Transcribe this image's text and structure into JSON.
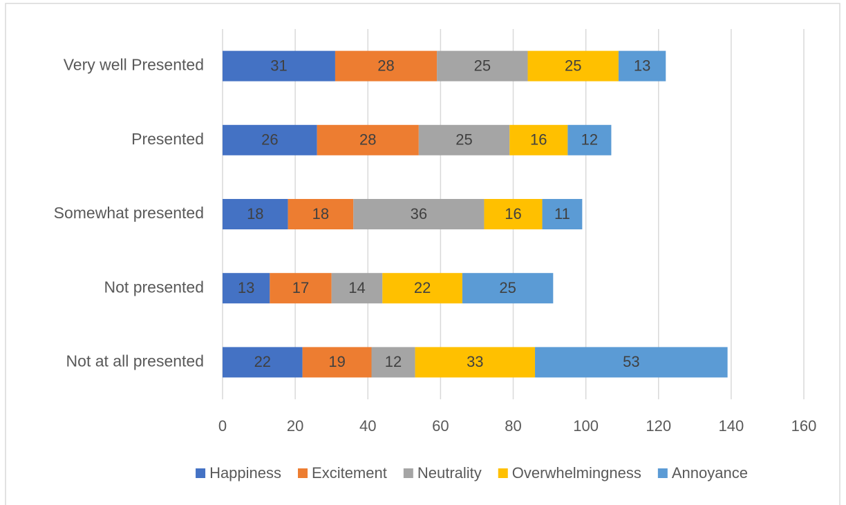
{
  "chart_data": {
    "type": "stacked_bar_horizontal",
    "categories": [
      "Very well Presented",
      "Presented",
      "Somewhat presented",
      "Not presented",
      "Not at all presented"
    ],
    "series": [
      {
        "name": "Happiness",
        "color": "#4472c4",
        "values": [
          31,
          26,
          18,
          13,
          22
        ]
      },
      {
        "name": "Excitement",
        "color": "#ed7d31",
        "values": [
          28,
          28,
          18,
          17,
          19
        ]
      },
      {
        "name": "Neutrality",
        "color": "#a5a5a5",
        "values": [
          25,
          25,
          36,
          14,
          12
        ]
      },
      {
        "name": "Overwhelmingness",
        "color": "#ffc000",
        "values": [
          25,
          16,
          16,
          22,
          33
        ]
      },
      {
        "name": "Annoyance",
        "color": "#5b9bd5",
        "values": [
          13,
          12,
          11,
          25,
          53
        ]
      }
    ],
    "xlim": [
      0,
      160
    ],
    "xticks": [
      0,
      20,
      40,
      60,
      80,
      100,
      120,
      140,
      160
    ],
    "grid": true,
    "legend": "bottom"
  }
}
